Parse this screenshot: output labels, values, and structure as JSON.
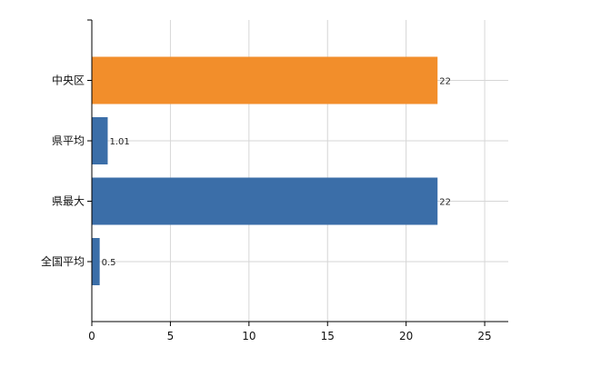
{
  "chart_data": {
    "type": "bar",
    "orientation": "horizontal",
    "categories": [
      "中央区",
      "県平均",
      "県最大",
      "全国平均"
    ],
    "values": [
      22,
      1.01,
      22,
      0.5
    ],
    "data_labels": [
      "22",
      "1.01",
      "22",
      "0.5"
    ],
    "bar_colors": [
      "#f28e2b",
      "#3b6ea8",
      "#3b6ea8",
      "#3b6ea8"
    ],
    "xlim": [
      0,
      26.5
    ],
    "x_ticks": [
      0,
      5,
      10,
      15,
      20,
      25
    ],
    "x_tick_labels": [
      "0",
      "5",
      "10",
      "15",
      "20",
      "25"
    ],
    "grid": true,
    "grid_color": "#d6d6d6",
    "title": "",
    "xlabel": "",
    "ylabel": ""
  }
}
